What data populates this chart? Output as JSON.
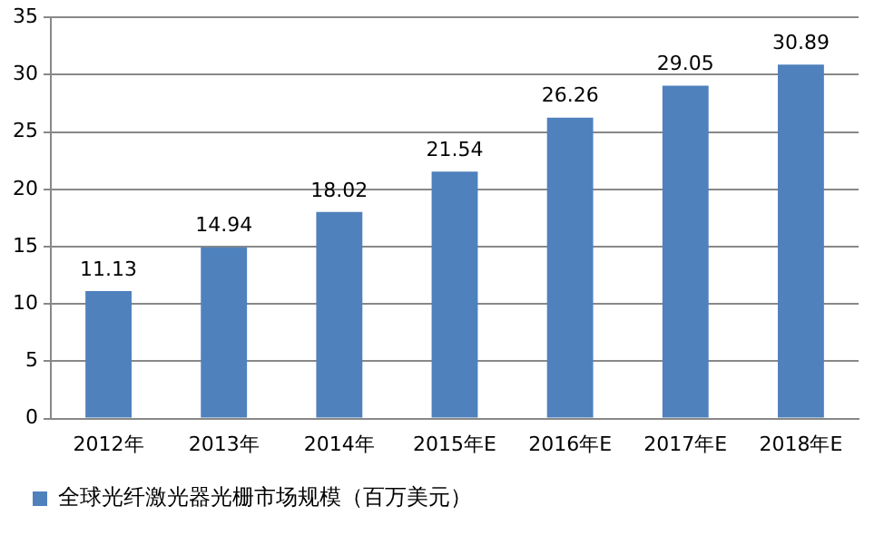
{
  "chart_data": {
    "type": "bar",
    "categories": [
      "2012年",
      "2013年",
      "2014年",
      "2015年E",
      "2016年E",
      "2017年E",
      "2018年E"
    ],
    "series": [
      {
        "name": "全球光纤激光器光栅市场规模（百万美元）",
        "color": "#4f81bd",
        "values": [
          11.13,
          14.94,
          18.02,
          21.54,
          26.26,
          29.05,
          30.89
        ]
      }
    ],
    "ylim": [
      0,
      35
    ],
    "yticks": [
      0,
      5,
      10,
      15,
      20,
      25,
      30,
      35
    ],
    "grid": "y",
    "legend": "bottom",
    "data_labels": true
  }
}
